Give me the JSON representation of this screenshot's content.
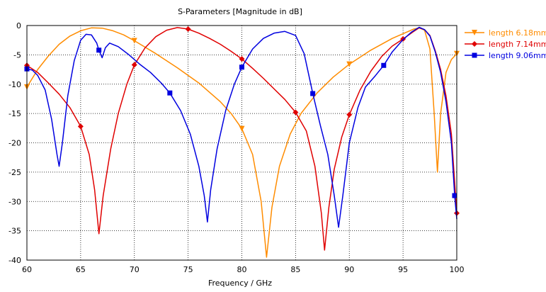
{
  "chart_data": {
    "type": "line",
    "title": "S-Parameters [Magnitude in dB]",
    "xlabel": "Frequency / GHz",
    "ylabel": "",
    "xlim": [
      60,
      100
    ],
    "ylim": [
      -40,
      0
    ],
    "x_ticks": [
      60,
      65,
      70,
      75,
      80,
      85,
      90,
      95,
      100
    ],
    "y_ticks": [
      0,
      -5,
      -10,
      -15,
      -20,
      -25,
      -30,
      -35,
      -40
    ],
    "grid": true,
    "legend_position": "right",
    "series": [
      {
        "name": "length 6.18mm",
        "color": "#FF8C00",
        "marker": "triangle-down",
        "points": [
          [
            60,
            -10.5
          ],
          [
            61,
            -7.5
          ],
          [
            62,
            -5.2
          ],
          [
            63,
            -3.2
          ],
          [
            64,
            -1.8
          ],
          [
            65,
            -0.9
          ],
          [
            66,
            -0.4
          ],
          [
            67,
            -0.45
          ],
          [
            68,
            -0.9
          ],
          [
            69,
            -1.6
          ],
          [
            70,
            -2.6
          ],
          [
            72,
            -4.8
          ],
          [
            74,
            -7.2
          ],
          [
            76,
            -9.8
          ],
          [
            78,
            -13
          ],
          [
            79,
            -15
          ],
          [
            80,
            -17.6
          ],
          [
            81,
            -22
          ],
          [
            81.8,
            -30
          ],
          [
            82.3,
            -39.5
          ],
          [
            82.8,
            -31
          ],
          [
            83.5,
            -24
          ],
          [
            84.5,
            -18.5
          ],
          [
            85.5,
            -15
          ],
          [
            87,
            -11.5
          ],
          [
            88.5,
            -8.8
          ],
          [
            90,
            -6.6
          ],
          [
            92,
            -4.2
          ],
          [
            94,
            -2.2
          ],
          [
            95,
            -1.4
          ],
          [
            96,
            -0.6
          ],
          [
            96.5,
            -0.4
          ],
          [
            97,
            -0.8
          ],
          [
            97.5,
            -4
          ],
          [
            97.9,
            -15
          ],
          [
            98.2,
            -25
          ],
          [
            98.5,
            -15
          ],
          [
            99,
            -8
          ],
          [
            99.5,
            -5.8
          ],
          [
            100,
            -4.8
          ]
        ],
        "markers": [
          [
            60,
            -10.5
          ],
          [
            70,
            -2.6
          ],
          [
            80,
            -17.6
          ],
          [
            90,
            -6.6
          ],
          [
            100,
            -4.8
          ]
        ]
      },
      {
        "name": "length 7.14mm",
        "color": "#E00000",
        "marker": "diamond",
        "points": [
          [
            60,
            -6.8
          ],
          [
            61,
            -8
          ],
          [
            62,
            -9.8
          ],
          [
            63,
            -11.7
          ],
          [
            64,
            -14
          ],
          [
            65,
            -17.2
          ],
          [
            65.8,
            -22
          ],
          [
            66.3,
            -28
          ],
          [
            66.7,
            -35.5
          ],
          [
            67.1,
            -29
          ],
          [
            67.8,
            -21
          ],
          [
            68.5,
            -15
          ],
          [
            69.3,
            -10
          ],
          [
            70,
            -6.7
          ],
          [
            71,
            -3.8
          ],
          [
            72,
            -1.9
          ],
          [
            73,
            -0.8
          ],
          [
            74,
            -0.35
          ],
          [
            75,
            -0.6
          ],
          [
            76,
            -1.3
          ],
          [
            77,
            -2.2
          ],
          [
            78,
            -3.2
          ],
          [
            79,
            -4.4
          ],
          [
            80,
            -5.7
          ],
          [
            81,
            -7.3
          ],
          [
            82,
            -9
          ],
          [
            83,
            -10.8
          ],
          [
            84,
            -12.6
          ],
          [
            85,
            -14.8
          ],
          [
            86,
            -18
          ],
          [
            86.8,
            -24
          ],
          [
            87.4,
            -32
          ],
          [
            87.7,
            -38.3
          ],
          [
            88.1,
            -31
          ],
          [
            88.6,
            -24.5
          ],
          [
            89.3,
            -19
          ],
          [
            90,
            -15.2
          ],
          [
            91,
            -11
          ],
          [
            92,
            -7.8
          ],
          [
            93,
            -5.3
          ],
          [
            94,
            -3.5
          ],
          [
            95,
            -2.3
          ],
          [
            96,
            -1
          ],
          [
            96.5,
            -0.4
          ],
          [
            97,
            -0.7
          ],
          [
            97.5,
            -1.7
          ],
          [
            98,
            -4.3
          ],
          [
            98.5,
            -7.5
          ],
          [
            99,
            -12
          ],
          [
            99.5,
            -18.5
          ],
          [
            100,
            -32
          ]
        ],
        "markers": [
          [
            60,
            -6.8
          ],
          [
            65,
            -17.2
          ],
          [
            70,
            -6.7
          ],
          [
            75,
            -0.6
          ],
          [
            80,
            -5.7
          ],
          [
            85,
            -14.8
          ],
          [
            90,
            -15.2
          ],
          [
            95,
            -2.3
          ],
          [
            100,
            -32
          ]
        ]
      },
      {
        "name": "length 9.06mm",
        "color": "#0000E0",
        "marker": "square",
        "points": [
          [
            60,
            -7.4
          ],
          [
            60.5,
            -7.6
          ],
          [
            61,
            -8.5
          ],
          [
            61.7,
            -11
          ],
          [
            62.3,
            -16
          ],
          [
            62.8,
            -22
          ],
          [
            63,
            -24
          ],
          [
            63.3,
            -20
          ],
          [
            63.8,
            -12
          ],
          [
            64.4,
            -6
          ],
          [
            65,
            -2.5
          ],
          [
            65.5,
            -1.5
          ],
          [
            66,
            -1.6
          ],
          [
            66.5,
            -3
          ],
          [
            66.7,
            -4.2
          ],
          [
            67,
            -5.5
          ],
          [
            67.3,
            -3.8
          ],
          [
            67.7,
            -3
          ],
          [
            68.5,
            -3.6
          ],
          [
            69.5,
            -5
          ],
          [
            70.5,
            -6.6
          ],
          [
            71.5,
            -8
          ],
          [
            72.5,
            -9.8
          ],
          [
            73.3,
            -11.5
          ],
          [
            74.3,
            -14.5
          ],
          [
            75.2,
            -18.5
          ],
          [
            76,
            -24
          ],
          [
            76.5,
            -29
          ],
          [
            76.8,
            -33.5
          ],
          [
            77.1,
            -28
          ],
          [
            77.7,
            -21
          ],
          [
            78.5,
            -14.5
          ],
          [
            79.3,
            -10
          ],
          [
            80,
            -7.1
          ],
          [
            81,
            -4
          ],
          [
            82,
            -2.2
          ],
          [
            83,
            -1.3
          ],
          [
            84,
            -1
          ],
          [
            85,
            -1.7
          ],
          [
            85.8,
            -4.8
          ],
          [
            86.6,
            -11.6
          ],
          [
            87.3,
            -17
          ],
          [
            88,
            -22
          ],
          [
            88.6,
            -29
          ],
          [
            89,
            -34.4
          ],
          [
            89.4,
            -29
          ],
          [
            90,
            -20
          ],
          [
            90.8,
            -14
          ],
          [
            91.5,
            -10.5
          ],
          [
            92.4,
            -8.6
          ],
          [
            93.2,
            -6.8
          ],
          [
            94,
            -4.5
          ],
          [
            95,
            -2.4
          ],
          [
            95.8,
            -1.1
          ],
          [
            96.5,
            -0.3
          ],
          [
            97,
            -0.7
          ],
          [
            97.5,
            -1.8
          ],
          [
            98,
            -4.5
          ],
          [
            98.5,
            -8
          ],
          [
            99,
            -13
          ],
          [
            99.5,
            -20
          ],
          [
            99.8,
            -29
          ],
          [
            100,
            -33
          ]
        ],
        "markers": [
          [
            60,
            -7.4
          ],
          [
            66.7,
            -4.2
          ],
          [
            73.3,
            -11.5
          ],
          [
            80,
            -7.1
          ],
          [
            86.6,
            -11.6
          ],
          [
            93.2,
            -6.8
          ],
          [
            99.8,
            -29
          ]
        ]
      }
    ]
  }
}
